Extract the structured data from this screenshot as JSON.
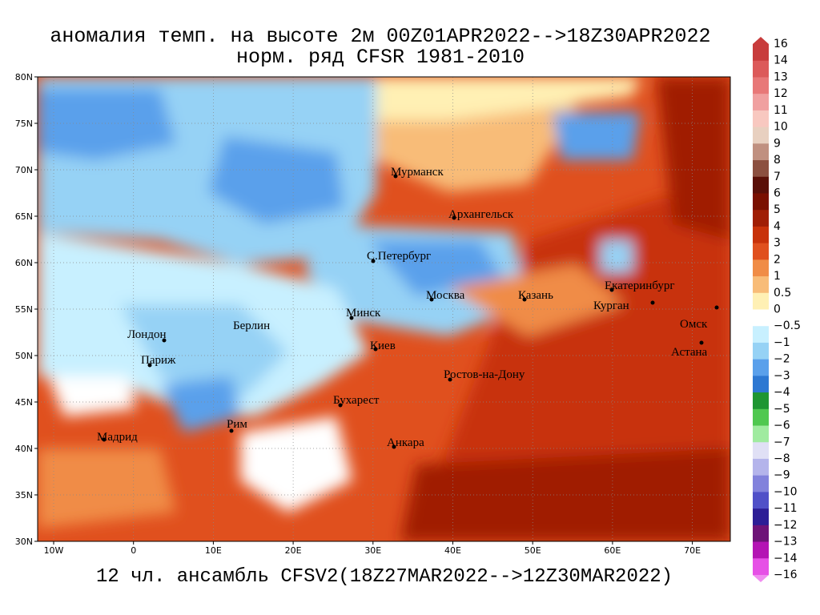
{
  "header": {
    "title": [
      "аномалия темп. на высоте 2м 00Z01APR2022-->18Z30APR2022",
      "норм. ряд CFSR 1981-2010"
    ]
  },
  "footer": "12 чл. ансамбль CFSV2(18Z27MAR2022-->12Z30MAR2022)",
  "lon_ticks": [
    "10W",
    "0",
    "10E",
    "20E",
    "30E",
    "40E",
    "50E",
    "60E",
    "70E"
  ],
  "lat_ticks": [
    "80N",
    "75N",
    "70N",
    "65N",
    "60N",
    "55N",
    "50N",
    "45N",
    "40N",
    "35N",
    "30N"
  ],
  "cities": [
    "Мурманск",
    "Архангельск",
    "С.Петербург",
    "Москва",
    "Казань",
    "Екатеринбург",
    "Курган",
    "Омск",
    "Астана",
    "Минск",
    "Киев",
    "Берлин",
    "Лондон",
    "Париж",
    "Ростов-на-Дону",
    "Бухарест",
    "Рим",
    "Мадрид",
    "Анкара"
  ],
  "colorbar": {
    "ticks": [
      16,
      14,
      13,
      12,
      11,
      10,
      9,
      8,
      7,
      6,
      5,
      4,
      3,
      2,
      1,
      0.5,
      0,
      {
        "value": -0.5,
        "label": "−0.5"
      },
      {
        "value": -1,
        "label": "−1"
      },
      {
        "value": -2,
        "label": "−2"
      },
      {
        "value": -3,
        "label": "−3"
      },
      {
        "value": -4,
        "label": "−4"
      },
      {
        "value": -5,
        "label": "−5"
      },
      {
        "value": -6,
        "label": "−6"
      },
      {
        "value": -7,
        "label": "−7"
      },
      {
        "value": -8,
        "label": "−8"
      },
      {
        "value": -9,
        "label": "−9"
      },
      {
        "value": -10,
        "label": "−10"
      },
      {
        "value": -11,
        "label": "−11"
      },
      {
        "value": -12,
        "label": "−12"
      },
      {
        "value": -13,
        "label": "−13"
      },
      {
        "value": -14,
        "label": "−14"
      },
      {
        "value": -16,
        "label": "−16"
      }
    ],
    "colors": [
      "#c83c3c",
      "#dc5a5a",
      "#e87878",
      "#f0a0a0",
      "#f8c8c0",
      "#e8d0c0",
      "#c09080",
      "#8c5040",
      "#5a1008",
      "#7a1000",
      "#a01e05",
      "#c8320a",
      "#e0501e",
      "#f08c46",
      "#f8bc78",
      "#fff0b4",
      "#ffffff",
      "#c8f0ff",
      "#96d2f5",
      "#5aa0eb",
      "#2d78d2",
      "#1e9632",
      "#50c850",
      "#a0eba0",
      "#e0e0f5",
      "#b4b4eb",
      "#8282dc",
      "#5050c8",
      "#2d1e96",
      "#6e1478",
      "#b414b4",
      "#e650e6"
    ]
  }
}
